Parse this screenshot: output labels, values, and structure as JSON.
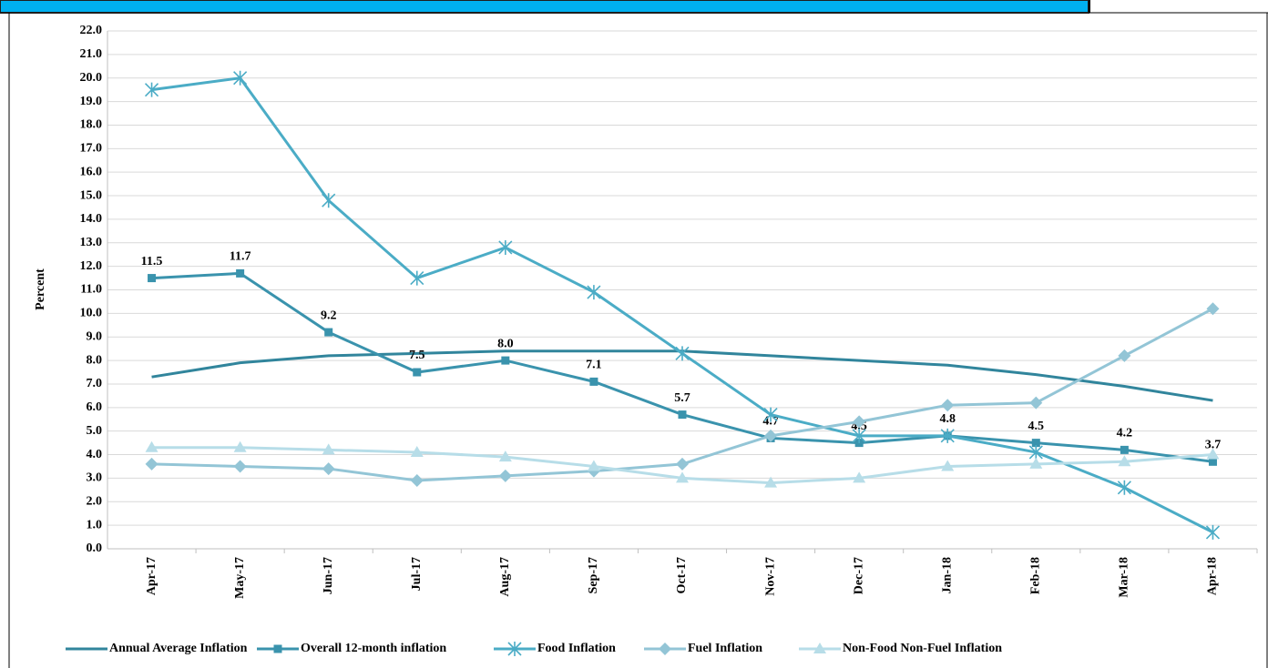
{
  "chart_data": {
    "type": "line",
    "y_label": "Percent",
    "categories": [
      "Apr-17",
      "May-17",
      "Jun-17",
      "Jul-17",
      "Aug-17",
      "Sep-17",
      "Oct-17",
      "Nov-17",
      "Dec-17",
      "Jan-18",
      "Feb-18",
      "Mar-18",
      "Apr-18"
    ],
    "ylim": [
      0,
      22
    ],
    "yticks": [
      {
        "value": 0,
        "label": "0.0"
      },
      {
        "value": 1,
        "label": "1.0"
      },
      {
        "value": 2,
        "label": "2.0"
      },
      {
        "value": 3,
        "label": "3.0"
      },
      {
        "value": 4,
        "label": "4.0"
      },
      {
        "value": 5,
        "label": "5.0"
      },
      {
        "value": 6,
        "label": "6.0"
      },
      {
        "value": 7,
        "label": "7.0"
      },
      {
        "value": 8,
        "label": "8.0"
      },
      {
        "value": 9,
        "label": "9.0"
      },
      {
        "value": 10,
        "label": "10.0"
      },
      {
        "value": 11,
        "label": "11.0"
      },
      {
        "value": 12,
        "label": "12.0"
      },
      {
        "value": 13,
        "label": "13.0"
      },
      {
        "value": 14,
        "label": "14.0"
      },
      {
        "value": 15,
        "label": "15.0"
      },
      {
        "value": 16,
        "label": "16.0"
      },
      {
        "value": 17,
        "label": "17.0"
      },
      {
        "value": 18,
        "label": "18.0"
      },
      {
        "value": 19,
        "label": "19.0"
      },
      {
        "value": 20,
        "label": "20.0"
      },
      {
        "value": 21,
        "label": "21.0"
      },
      {
        "value": 22,
        "label": "22.0"
      }
    ],
    "grid": true,
    "legend": "bottom",
    "series": [
      {
        "name": "Annual Average Inflation",
        "color": "#31859c",
        "marker": "none",
        "values": [
          7.3,
          7.9,
          8.2,
          8.3,
          8.4,
          8.4,
          8.4,
          8.2,
          8.0,
          7.8,
          7.4,
          6.9,
          6.3
        ]
      },
      {
        "name": "Overall 12-month inflation",
        "color": "#3a93ad",
        "marker": "square",
        "values": [
          11.5,
          11.7,
          9.2,
          7.5,
          8.0,
          7.1,
          5.7,
          4.7,
          4.5,
          4.8,
          4.5,
          4.2,
          3.7
        ],
        "value_labels": [
          "11.5",
          "11.7",
          "9.2",
          "7.5",
          "8.0",
          "7.1",
          "5.7",
          "4.7",
          "4.5",
          "4.8",
          "4.5",
          "4.2",
          "3.7"
        ]
      },
      {
        "name": "Food Inflation",
        "color": "#4bacc6",
        "marker": "star",
        "values": [
          19.5,
          20.0,
          14.8,
          11.5,
          12.8,
          10.9,
          8.3,
          5.7,
          4.8,
          4.8,
          4.1,
          2.6,
          0.7
        ]
      },
      {
        "name": "Fuel Inflation",
        "color": "#93c5d6",
        "marker": "diamond",
        "values": [
          3.6,
          3.5,
          3.4,
          2.9,
          3.1,
          3.3,
          3.6,
          4.8,
          5.4,
          6.1,
          6.2,
          8.2,
          10.2
        ]
      },
      {
        "name": "Non-Food Non-Fuel Inflation",
        "color": "#b7dde8",
        "marker": "triangle",
        "values": [
          4.3,
          4.3,
          4.2,
          4.1,
          3.9,
          3.5,
          3.0,
          2.8,
          3.0,
          3.5,
          3.6,
          3.7,
          4.0
        ]
      }
    ]
  }
}
